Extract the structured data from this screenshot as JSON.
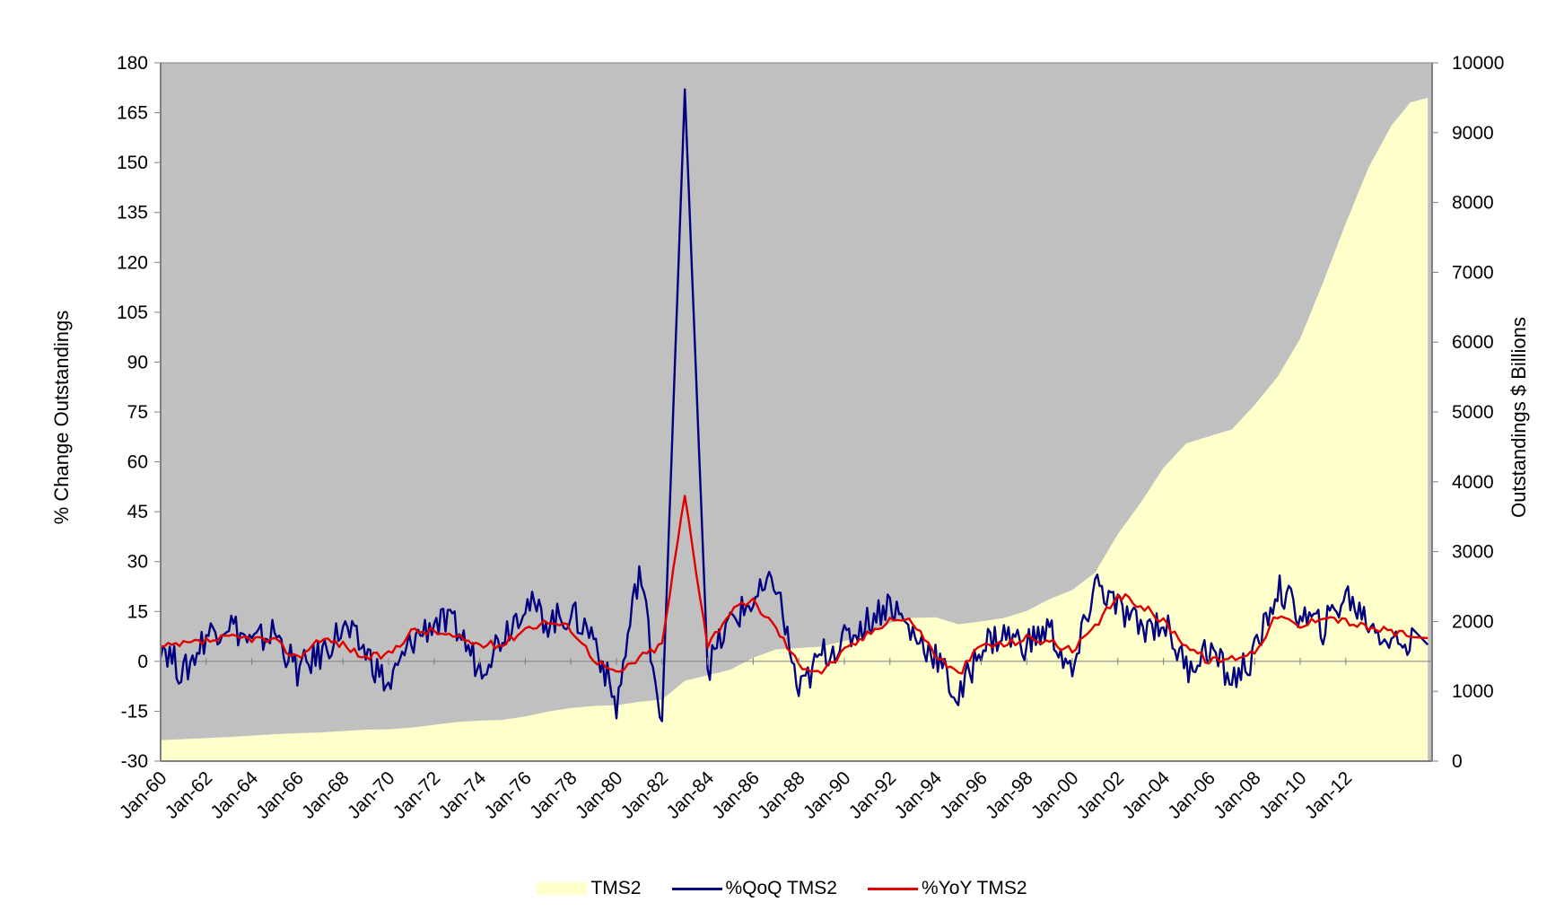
{
  "chart_data": {
    "type": "line",
    "title": "",
    "xlabel": "",
    "ylabel": "% Change Outstandings",
    "y2label": "Outstandings  $ Billions",
    "ylim": [
      -30,
      180
    ],
    "y2lim": [
      0,
      10000
    ],
    "yticks": [
      "-30",
      "-15",
      "0",
      "15",
      "30",
      "45",
      "60",
      "75",
      "90",
      "105",
      "120",
      "135",
      "150",
      "165",
      "180"
    ],
    "y2ticks": [
      "0",
      "1000",
      "2000",
      "3000",
      "4000",
      "5000",
      "6000",
      "7000",
      "8000",
      "9000",
      "10000"
    ],
    "xticks": [
      "Jan-60",
      "Jan-62",
      "Jan-64",
      "Jan-66",
      "Jan-68",
      "Jan-70",
      "Jan-72",
      "Jan-74",
      "Jan-76",
      "Jan-78",
      "Jan-80",
      "Jan-82",
      "Jan-84",
      "Jan-86",
      "Jan-88",
      "Jan-90",
      "Jan-92",
      "Jan-94",
      "Jan-96",
      "Jan-98",
      "Jan-00",
      "Jan-02",
      "Jan-04",
      "Jan-06",
      "Jan-08",
      "Jan-10",
      "Jan-12"
    ],
    "plot_background": "#c0c0c0",
    "legend_position": "bottom",
    "grid": false,
    "x_years": [
      1960,
      1961,
      1962,
      1963,
      1964,
      1965,
      1966,
      1967,
      1968,
      1969,
      1970,
      1971,
      1972,
      1973,
      1974,
      1975,
      1976,
      1977,
      1978,
      1979,
      1980,
      1981,
      1982,
      1983,
      1984,
      1985,
      1986,
      1987,
      1988,
      1989,
      1990,
      1991,
      1992,
      1993,
      1994,
      1995,
      1996,
      1997,
      1998,
      1999,
      2000,
      2001,
      2002,
      2003,
      2004,
      2005,
      2006,
      2007,
      2008,
      2009,
      2010,
      2011,
      2012,
      2013,
      2014,
      2015
    ],
    "series": [
      {
        "name": "TMS2",
        "type": "area",
        "axis": "right",
        "color": "#ffffcc",
        "values": [
          300,
          315,
          330,
          345,
          365,
          385,
          400,
          410,
          430,
          450,
          455,
          480,
          520,
          560,
          580,
          590,
          640,
          710,
          760,
          790,
          800,
          850,
          880,
          1150,
          1230,
          1310,
          1480,
          1600,
          1620,
          1640,
          1720,
          1800,
          1980,
          2050,
          2060,
          1960,
          2000,
          2050,
          2150,
          2320,
          2450,
          2700,
          3250,
          3700,
          4200,
          4550,
          4650,
          4750,
          5100,
          5500,
          6050,
          6850,
          7700,
          8500,
          9100,
          9500
        ]
      },
      {
        "name": "%QoQ TMS2",
        "type": "line",
        "axis": "left",
        "color": "#000080",
        "values": [
          6,
          -4,
          8,
          12,
          5,
          9,
          -3,
          2,
          10,
          3,
          -8,
          6,
          12,
          10,
          -2,
          8,
          18,
          12,
          14,
          8,
          -14,
          28,
          -18,
          172,
          -2,
          12,
          18,
          24,
          -10,
          2,
          6,
          12,
          18,
          8,
          2,
          -12,
          5,
          8,
          5,
          10,
          -5,
          24,
          16,
          10,
          12,
          -2,
          4,
          -6,
          2,
          22,
          14,
          10,
          20,
          12,
          6,
          5
        ]
      },
      {
        "name": "%YoY TMS2",
        "type": "line",
        "axis": "left",
        "color": "#e00000",
        "values": [
          4,
          5,
          6,
          7,
          7,
          6,
          1,
          7,
          5,
          1,
          2,
          9,
          9,
          7,
          5,
          5,
          10,
          12,
          10,
          1,
          -4,
          1,
          5,
          50,
          5,
          15,
          18,
          10,
          -1,
          -3,
          3,
          8,
          13,
          12,
          2,
          -4,
          5,
          5,
          7,
          6,
          3,
          10,
          20,
          17,
          12,
          5,
          0,
          1,
          3,
          14,
          10,
          14,
          12,
          10,
          9,
          7
        ]
      }
    ]
  },
  "legend": {
    "items": [
      {
        "label": "TMS2",
        "kind": "area",
        "color": "#ffffcc"
      },
      {
        "label": "%QoQ TMS2",
        "kind": "line",
        "color": "#000080"
      },
      {
        "label": "%YoY TMS2",
        "kind": "line",
        "color": "#e00000"
      }
    ]
  }
}
